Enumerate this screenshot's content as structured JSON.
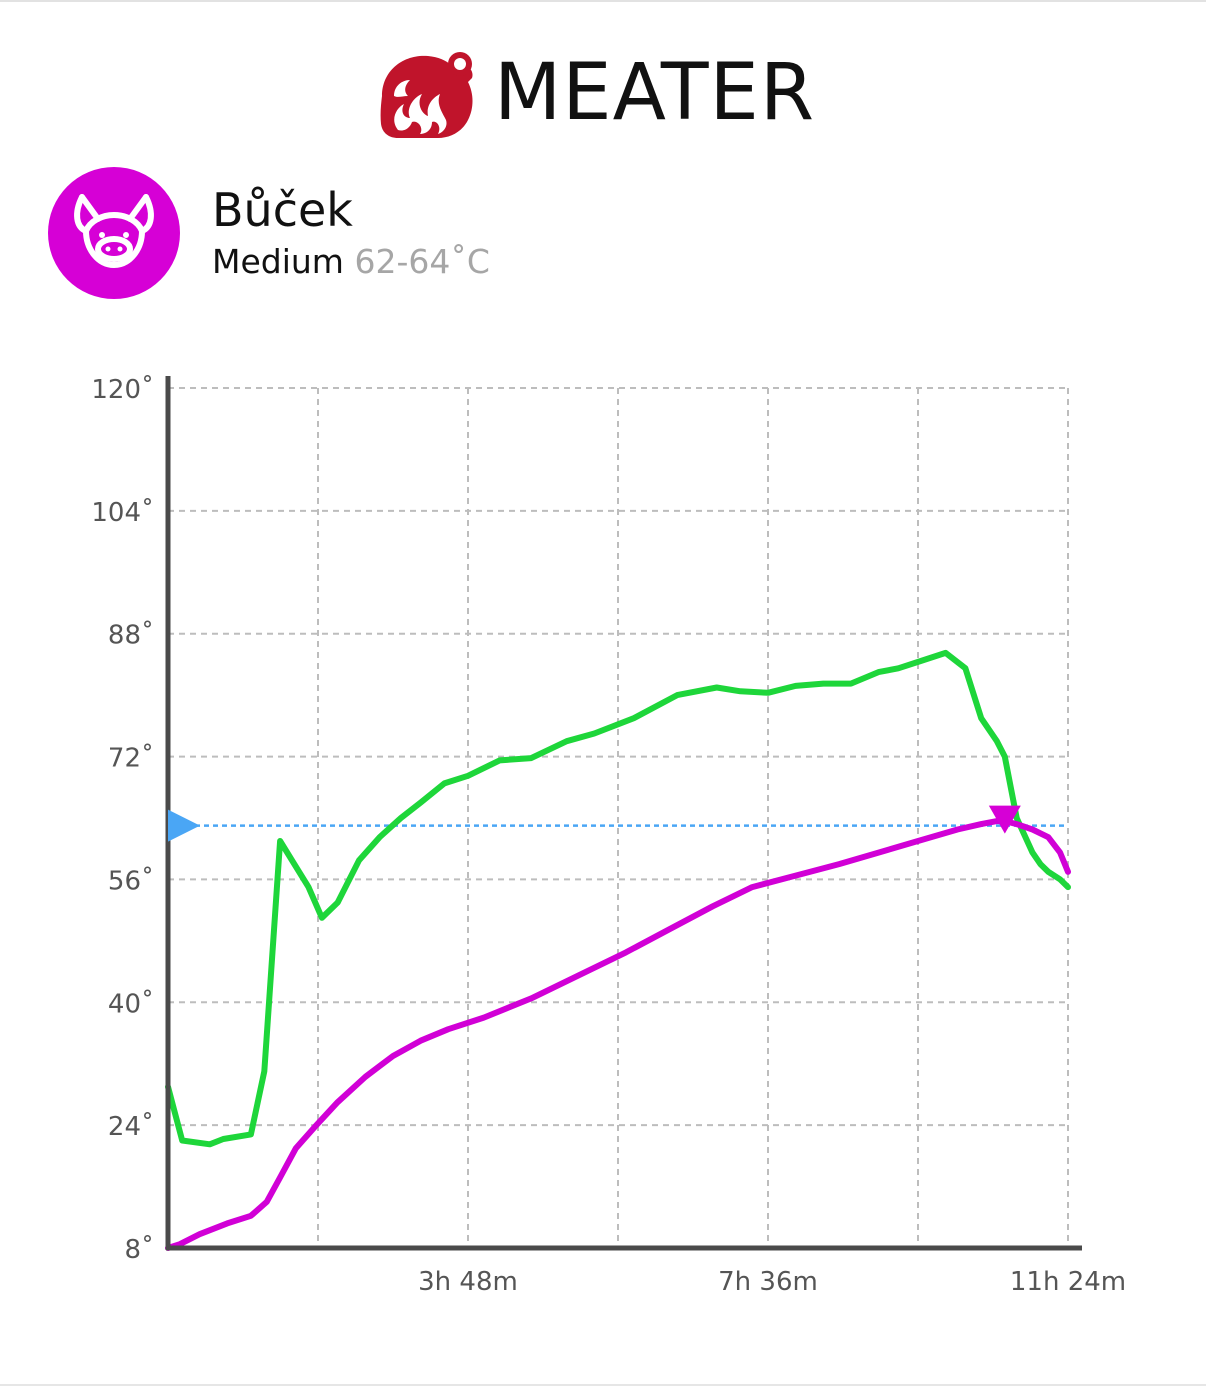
{
  "app": {
    "brand": "MEATER",
    "brand_color": "#c0142b"
  },
  "cook": {
    "name": "Bůček",
    "doneness": "Medium",
    "target_range": "62-64˚C",
    "animal_icon": "pig-icon",
    "accent_color": "#d600d6"
  },
  "chart_data": {
    "type": "line",
    "title": "",
    "xlabel": "",
    "ylabel": "",
    "x_unit": "hours",
    "xlim": [
      0,
      11.4
    ],
    "ylim": [
      8,
      120
    ],
    "yticks": [
      8,
      24,
      40,
      56,
      72,
      88,
      104,
      120
    ],
    "ytick_labels": [
      "8˚",
      "24˚",
      "40˚",
      "56˚",
      "72˚",
      "88˚",
      "104˚",
      "120˚"
    ],
    "xticks": [
      1.9,
      3.8,
      5.7,
      7.6,
      9.5,
      11.4
    ],
    "xtick_labels": [
      "",
      "3h 48m",
      "",
      "7h 36m",
      "",
      "11h 24m"
    ],
    "grid": true,
    "target_temp": 63,
    "target_color": "#4aa6f5",
    "peak_marker": {
      "x": 10.6,
      "y": 63
    },
    "series": [
      {
        "color": "#1ed63a",
        "x": [
          0,
          0.18,
          0.53,
          0.7,
          1.05,
          1.22,
          1.42,
          1.6,
          1.78,
          1.95,
          2.15,
          2.42,
          2.68,
          2.95,
          3.2,
          3.5,
          3.8,
          4.2,
          4.6,
          5.05,
          5.4,
          5.9,
          6.45,
          6.95,
          7.25,
          7.6,
          7.95,
          8.3,
          8.65,
          9.0,
          9.25,
          9.55,
          9.85,
          10.1,
          10.3,
          10.5,
          10.6,
          10.75,
          10.95,
          11.05,
          11.15,
          11.3,
          11.4
        ],
        "y": [
          29,
          22,
          21.5,
          22.2,
          22.8,
          31,
          61,
          58,
          55,
          51,
          53,
          58.5,
          61.5,
          64,
          66,
          68.5,
          69.5,
          71.5,
          71.8,
          74,
          75,
          77,
          80,
          81,
          80.5,
          80.3,
          81.2,
          81.5,
          81.5,
          83,
          83.5,
          84.5,
          85.5,
          83.5,
          77,
          74,
          72,
          64,
          59.5,
          58,
          57,
          56,
          55
        ]
      },
      {
        "color": "#d100d6",
        "x": [
          0,
          0.15,
          0.4,
          0.75,
          1.05,
          1.25,
          1.42,
          1.62,
          1.88,
          2.15,
          2.5,
          2.85,
          3.2,
          3.55,
          4.0,
          4.6,
          5.2,
          5.8,
          6.35,
          6.9,
          7.4,
          7.95,
          8.5,
          9.0,
          9.5,
          10.0,
          10.3,
          10.5,
          10.6,
          10.75,
          10.95,
          11.15,
          11.3,
          11.4
        ],
        "y": [
          8,
          8.5,
          9.8,
          11.2,
          12.2,
          14,
          17.2,
          21,
          24,
          27,
          30.3,
          33,
          35,
          36.5,
          38,
          40.5,
          43.5,
          46.5,
          49.5,
          52.5,
          55,
          56.5,
          58,
          59.5,
          61,
          62.5,
          63.2,
          63.6,
          63.6,
          63.2,
          62.5,
          61.5,
          59.5,
          57
        ]
      }
    ]
  }
}
